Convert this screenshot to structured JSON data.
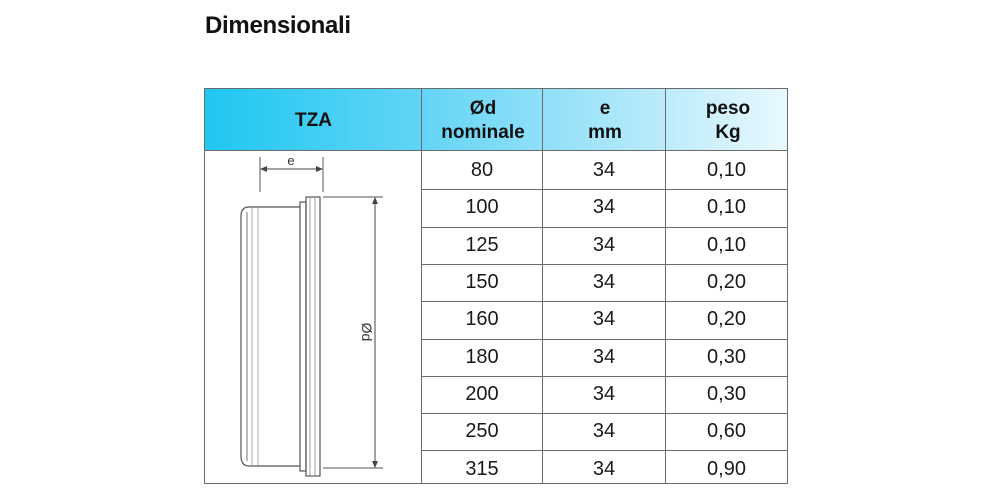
{
  "heading": "Dimensionali",
  "table": {
    "headers": [
      {
        "lines": [
          "TZA"
        ]
      },
      {
        "lines": [
          "Ød",
          "nominale"
        ]
      },
      {
        "lines": [
          "e",
          "mm"
        ]
      },
      {
        "lines": [
          "peso",
          "Kg"
        ]
      }
    ],
    "rows": [
      [
        "80",
        "34",
        "0,10"
      ],
      [
        "100",
        "34",
        "0,10"
      ],
      [
        "125",
        "34",
        "0,10"
      ],
      [
        "150",
        "34",
        "0,20"
      ],
      [
        "160",
        "34",
        "0,20"
      ],
      [
        "180",
        "34",
        "0,30"
      ],
      [
        "200",
        "34",
        "0,30"
      ],
      [
        "250",
        "34",
        "0,60"
      ],
      [
        "315",
        "34",
        "0,90"
      ]
    ]
  },
  "drawing": {
    "label_e": "e",
    "label_d": "Ød"
  },
  "colors": {
    "header_gradient_start": "#1fc7f1",
    "header_gradient_end": "#e9f8fe",
    "border": "#6b6b6b"
  }
}
